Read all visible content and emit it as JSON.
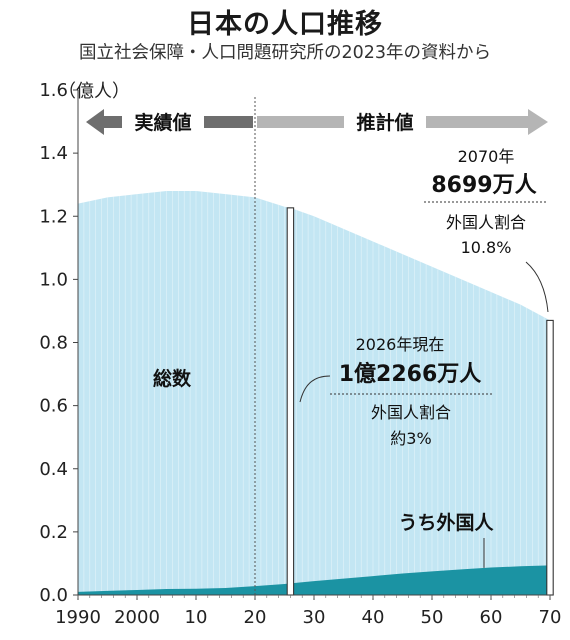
{
  "chart_data": {
    "type": "area",
    "title": "日本の人口推移",
    "subtitle": "国立社会保障・人口問題研究所の2023年の資料から",
    "ylabel": "（億人）",
    "ylim": [
      0,
      1.6
    ],
    "yticks": [
      "0.0",
      "0.2",
      "0.4",
      "0.6",
      "0.8",
      "1.0",
      "1.2",
      "1.4",
      "1.6"
    ],
    "xlim": [
      1990,
      2070
    ],
    "xtick_labels": [
      "1990",
      "2000",
      "10",
      "20",
      "30",
      "40",
      "50",
      "60",
      "70"
    ],
    "divider_year": 2020,
    "period_labels": {
      "actual": "実績値",
      "projected": "推計値"
    },
    "x": [
      1990,
      1995,
      2000,
      2005,
      2010,
      2015,
      2020,
      2025,
      2026,
      2030,
      2035,
      2040,
      2045,
      2050,
      2055,
      2060,
      2065,
      2070
    ],
    "series": [
      {
        "name": "総数",
        "values": [
          1.24,
          1.26,
          1.27,
          1.28,
          1.28,
          1.27,
          1.26,
          1.23,
          1.2266,
          1.2,
          1.16,
          1.12,
          1.08,
          1.04,
          1.0,
          0.96,
          0.92,
          0.87
        ]
      },
      {
        "name": "うち外国人",
        "values": [
          0.01,
          0.013,
          0.016,
          0.019,
          0.02,
          0.022,
          0.028,
          0.035,
          0.037,
          0.044,
          0.052,
          0.06,
          0.068,
          0.075,
          0.081,
          0.087,
          0.091,
          0.094
        ]
      }
    ],
    "annotations": {
      "y2026": {
        "label": "2026年現在",
        "value": "1億2266万人",
        "ratio_label": "外国人割合",
        "ratio": "約3%"
      },
      "y2070": {
        "label": "2070年",
        "value": "8699万人",
        "ratio_label": "外国人割合",
        "ratio": "10.8%"
      }
    },
    "colors": {
      "total": "#c3e6f3",
      "foreign": "#1b93a3",
      "highlight": "#ffffff",
      "arrow_actual": "#6e6e6e",
      "arrow_projected": "#b5b5b5"
    }
  }
}
